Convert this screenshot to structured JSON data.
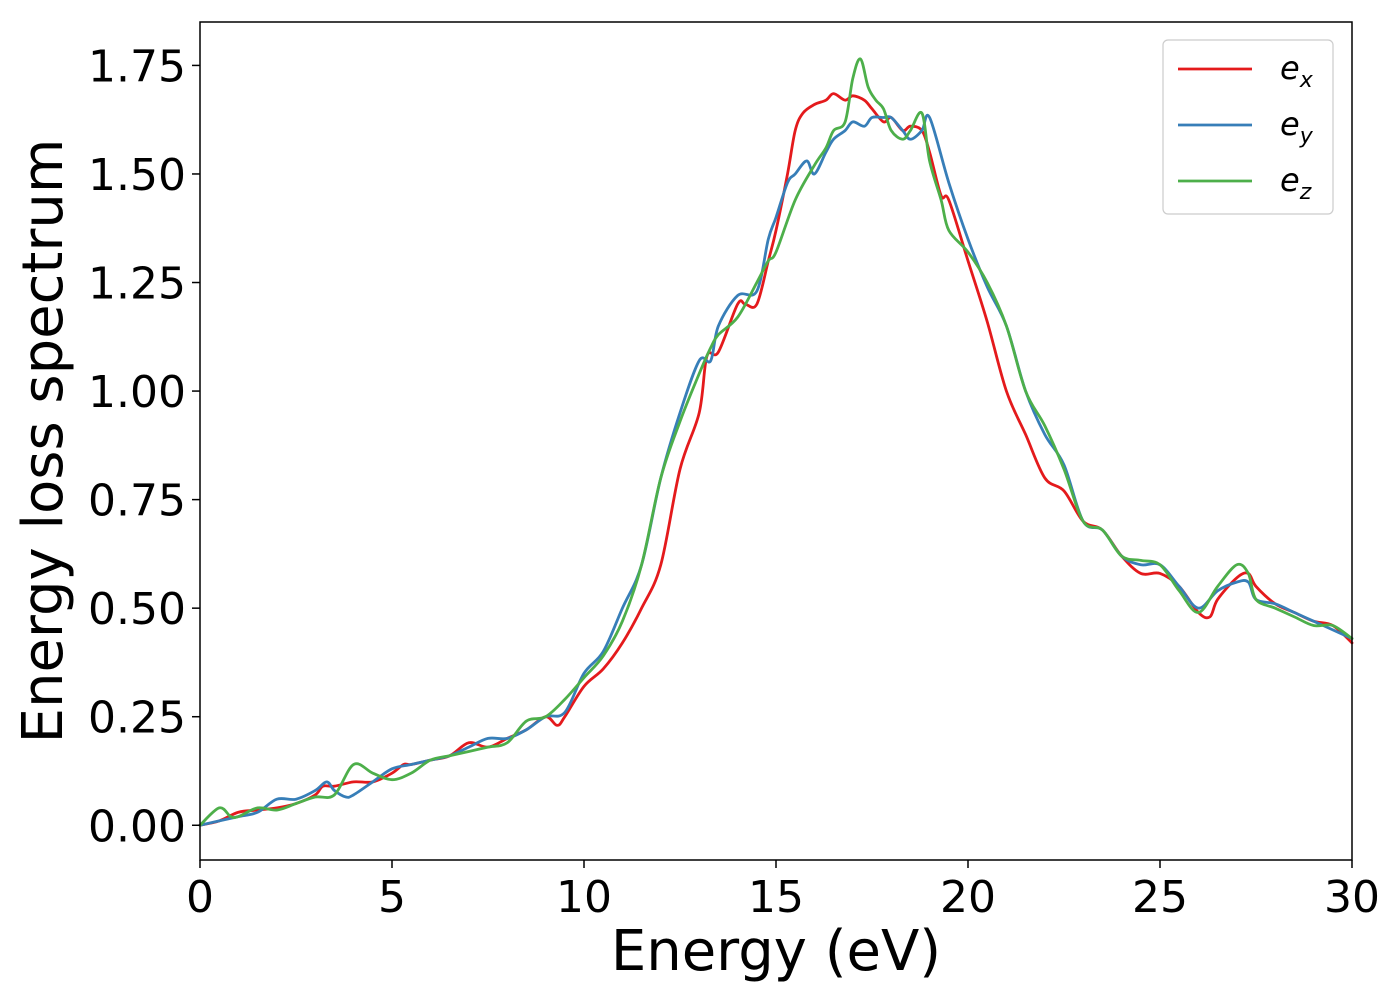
{
  "chart_data": {
    "type": "line",
    "title": "",
    "xlabel": "Energy (eV)",
    "ylabel": "Energy loss spectrum",
    "xlim": [
      0,
      30
    ],
    "ylim": [
      -0.08,
      1.85
    ],
    "xticks": [
      0,
      5,
      10,
      15,
      20,
      25,
      30
    ],
    "xtick_labels": [
      "0",
      "5",
      "10",
      "15",
      "20",
      "25",
      "30"
    ],
    "yticks": [
      0.0,
      0.25,
      0.5,
      0.75,
      1.0,
      1.25,
      1.5,
      1.75
    ],
    "ytick_labels": [
      "0.00",
      "0.25",
      "0.50",
      "0.75",
      "1.00",
      "1.25",
      "1.50",
      "1.75"
    ],
    "grid": false,
    "legend_position": "top-right",
    "series": [
      {
        "name": "e_x",
        "label_base": "e",
        "label_sub": "x",
        "color": "#e41a1c",
        "x": [
          0,
          0.5,
          1,
          1.5,
          2,
          2.5,
          3,
          3.2,
          3.5,
          4,
          4.5,
          5,
          5.3,
          5.5,
          6,
          6.5,
          7,
          7.5,
          8,
          8.5,
          9,
          9.3,
          9.5,
          10,
          10.5,
          11,
          11.5,
          12,
          12.5,
          13,
          13.2,
          13.5,
          14,
          14.2,
          14.5,
          14.8,
          15,
          15.3,
          15.5,
          15.7,
          16,
          16.3,
          16.5,
          16.8,
          17,
          17.3,
          17.5,
          17.8,
          18,
          18.3,
          18.5,
          18.8,
          19,
          19.3,
          19.5,
          20,
          20.5,
          21,
          21.5,
          22,
          22.5,
          23,
          23.5,
          24,
          24.5,
          25,
          25.5,
          26,
          26.3,
          26.5,
          27,
          27.3,
          27.5,
          28,
          28.5,
          29,
          29.5,
          30
        ],
        "y": [
          0.0,
          0.01,
          0.03,
          0.035,
          0.04,
          0.05,
          0.07,
          0.09,
          0.09,
          0.1,
          0.1,
          0.12,
          0.14,
          0.14,
          0.15,
          0.16,
          0.19,
          0.18,
          0.2,
          0.22,
          0.25,
          0.23,
          0.25,
          0.32,
          0.36,
          0.42,
          0.5,
          0.6,
          0.82,
          0.95,
          1.08,
          1.09,
          1.2,
          1.2,
          1.2,
          1.3,
          1.37,
          1.5,
          1.6,
          1.64,
          1.66,
          1.67,
          1.685,
          1.67,
          1.68,
          1.67,
          1.65,
          1.62,
          1.63,
          1.6,
          1.61,
          1.6,
          1.55,
          1.45,
          1.44,
          1.3,
          1.16,
          1.0,
          0.9,
          0.8,
          0.77,
          0.7,
          0.68,
          0.62,
          0.58,
          0.58,
          0.55,
          0.49,
          0.48,
          0.52,
          0.57,
          0.58,
          0.55,
          0.51,
          0.49,
          0.47,
          0.46,
          0.42
        ]
      },
      {
        "name": "e_y",
        "label_base": "e",
        "label_sub": "y",
        "color": "#377eb8",
        "x": [
          0,
          0.5,
          1,
          1.5,
          2,
          2.5,
          3,
          3.3,
          3.5,
          3.8,
          4,
          4.5,
          5,
          5.5,
          6,
          6.5,
          7,
          7.5,
          8,
          8.5,
          9,
          9.5,
          10,
          10.5,
          11,
          11.5,
          12,
          12.5,
          13,
          13.3,
          13.5,
          14,
          14.5,
          14.8,
          15,
          15.3,
          15.5,
          15.8,
          16,
          16.3,
          16.5,
          16.8,
          17,
          17.3,
          17.5,
          17.8,
          18,
          18.3,
          18.5,
          18.8,
          19,
          19.5,
          20,
          20.5,
          21,
          21.5,
          22,
          22.5,
          23,
          23.5,
          24,
          24.5,
          25,
          25.5,
          26,
          26.5,
          27,
          27.3,
          27.5,
          28,
          28.5,
          29,
          29.5,
          30
        ],
        "y": [
          0.0,
          0.01,
          0.02,
          0.03,
          0.06,
          0.06,
          0.08,
          0.1,
          0.08,
          0.065,
          0.07,
          0.1,
          0.13,
          0.14,
          0.15,
          0.16,
          0.18,
          0.2,
          0.2,
          0.22,
          0.25,
          0.26,
          0.35,
          0.4,
          0.5,
          0.6,
          0.8,
          0.95,
          1.07,
          1.07,
          1.15,
          1.22,
          1.23,
          1.35,
          1.4,
          1.48,
          1.5,
          1.53,
          1.5,
          1.55,
          1.58,
          1.6,
          1.62,
          1.61,
          1.63,
          1.63,
          1.63,
          1.6,
          1.58,
          1.6,
          1.63,
          1.48,
          1.35,
          1.24,
          1.15,
          1.0,
          0.9,
          0.83,
          0.7,
          0.68,
          0.62,
          0.6,
          0.6,
          0.55,
          0.5,
          0.54,
          0.56,
          0.56,
          0.52,
          0.51,
          0.49,
          0.47,
          0.45,
          0.43
        ]
      },
      {
        "name": "e_z",
        "label_base": "e",
        "label_sub": "z",
        "color": "#4daf4a",
        "x": [
          0,
          0.5,
          0.8,
          1,
          1.5,
          2,
          2.5,
          3,
          3.5,
          4,
          4.5,
          5,
          5.5,
          6,
          6.5,
          7,
          7.5,
          8,
          8.5,
          9,
          9.5,
          10,
          10.5,
          11,
          11.5,
          12,
          12.5,
          13,
          13.3,
          13.5,
          14,
          14.5,
          14.8,
          15,
          15.5,
          16,
          16.3,
          16.5,
          16.8,
          17,
          17.2,
          17.4,
          17.6,
          17.8,
          18,
          18.3,
          18.5,
          18.8,
          19,
          19.3,
          19.5,
          20,
          20.5,
          21,
          21.5,
          22,
          22.5,
          23,
          23.5,
          24,
          24.5,
          25,
          25.5,
          26,
          26.5,
          27,
          27.3,
          27.5,
          28,
          28.5,
          29,
          29.5,
          30
        ],
        "y": [
          0.0,
          0.04,
          0.02,
          0.02,
          0.04,
          0.035,
          0.05,
          0.065,
          0.07,
          0.14,
          0.12,
          0.105,
          0.12,
          0.15,
          0.16,
          0.17,
          0.18,
          0.19,
          0.24,
          0.25,
          0.29,
          0.34,
          0.39,
          0.47,
          0.6,
          0.8,
          0.93,
          1.04,
          1.1,
          1.13,
          1.17,
          1.25,
          1.3,
          1.32,
          1.44,
          1.52,
          1.56,
          1.6,
          1.62,
          1.72,
          1.765,
          1.7,
          1.67,
          1.65,
          1.6,
          1.58,
          1.6,
          1.64,
          1.53,
          1.44,
          1.37,
          1.32,
          1.25,
          1.15,
          1.0,
          0.92,
          0.82,
          0.7,
          0.68,
          0.62,
          0.61,
          0.6,
          0.54,
          0.49,
          0.55,
          0.6,
          0.58,
          0.52,
          0.5,
          0.48,
          0.46,
          0.46,
          0.43
        ]
      }
    ]
  }
}
